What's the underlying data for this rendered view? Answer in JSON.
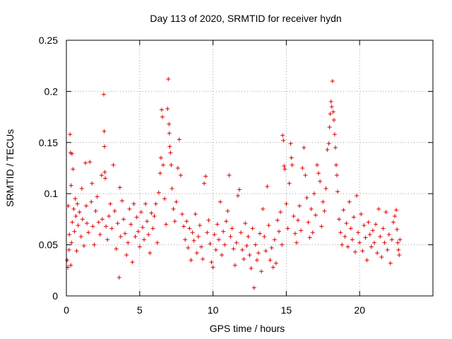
{
  "chart_data": {
    "type": "scatter",
    "title": "Day 113 of 2020, SRMTID for receiver hydn",
    "xlabel": "GPS time / hours",
    "ylabel": "SRMTID / TECUs",
    "xlim": [
      0,
      25
    ],
    "ylim": [
      0,
      0.25
    ],
    "xticks": [
      0,
      5,
      10,
      15,
      20
    ],
    "xtick_labels": [
      "0",
      "5",
      "10",
      "15",
      "20"
    ],
    "yticks": [
      0,
      0.05,
      0.1,
      0.15,
      0.2,
      0.25
    ],
    "ytick_labels": [
      "0",
      "0.05",
      "0.1",
      "0.15",
      "0.2",
      "0.25"
    ],
    "grid": true,
    "marker": "plus",
    "color": "#e00000",
    "series": [
      {
        "name": "SRMTID",
        "points": [
          [
            0.05,
            0.035
          ],
          [
            0.1,
            0.028
          ],
          [
            0.12,
            0.088
          ],
          [
            0.18,
            0.045
          ],
          [
            0.2,
            0.06
          ],
          [
            0.25,
            0.158
          ],
          [
            0.28,
            0.14
          ],
          [
            0.3,
            0.03
          ],
          [
            0.32,
            0.108
          ],
          [
            0.35,
            0.052
          ],
          [
            0.38,
            0.139
          ],
          [
            0.4,
            0.072
          ],
          [
            0.45,
            0.124
          ],
          [
            0.5,
            0.085
          ],
          [
            0.55,
            0.063
          ],
          [
            0.6,
            0.095
          ],
          [
            0.65,
            0.078
          ],
          [
            0.7,
            0.044
          ],
          [
            0.75,
            0.09
          ],
          [
            0.8,
            0.069
          ],
          [
            0.9,
            0.082
          ],
          [
            1.0,
            0.058
          ],
          [
            1.05,
            0.105
          ],
          [
            1.1,
            0.075
          ],
          [
            1.2,
            0.049
          ],
          [
            1.3,
            0.13
          ],
          [
            1.35,
            0.088
          ],
          [
            1.4,
            0.071
          ],
          [
            1.5,
            0.062
          ],
          [
            1.6,
            0.131
          ],
          [
            1.7,
            0.092
          ],
          [
            1.75,
            0.11
          ],
          [
            1.8,
            0.068
          ],
          [
            1.9,
            0.05
          ],
          [
            2.0,
            0.083
          ],
          [
            2.1,
            0.097
          ],
          [
            2.2,
            0.072
          ],
          [
            2.3,
            0.06
          ],
          [
            2.4,
            0.118
          ],
          [
            2.45,
            0.075
          ],
          [
            2.55,
            0.197
          ],
          [
            2.58,
            0.161
          ],
          [
            2.6,
            0.146
          ],
          [
            2.62,
            0.121
          ],
          [
            2.65,
            0.115
          ],
          [
            2.7,
            0.068
          ],
          [
            2.8,
            0.055
          ],
          [
            2.9,
            0.078
          ],
          [
            3.0,
            0.09
          ],
          [
            3.1,
            0.066
          ],
          [
            3.2,
            0.128
          ],
          [
            3.3,
            0.083
          ],
          [
            3.4,
            0.046
          ],
          [
            3.5,
            0.071
          ],
          [
            3.6,
            0.018
          ],
          [
            3.65,
            0.106
          ],
          [
            3.7,
            0.058
          ],
          [
            3.8,
            0.093
          ],
          [
            3.9,
            0.075
          ],
          [
            4.0,
            0.061
          ],
          [
            4.1,
            0.04
          ],
          [
            4.2,
            0.052
          ],
          [
            4.3,
            0.085
          ],
          [
            4.4,
            0.07
          ],
          [
            4.5,
            0.033
          ],
          [
            4.6,
            0.09
          ],
          [
            4.7,
            0.058
          ],
          [
            4.8,
            0.077
          ],
          [
            4.9,
            0.063
          ],
          [
            5.0,
            0.048
          ],
          [
            5.1,
            0.082
          ],
          [
            5.2,
            0.067
          ],
          [
            5.3,
            0.055
          ],
          [
            5.4,
            0.09
          ],
          [
            5.5,
            0.073
          ],
          [
            5.6,
            0.06
          ],
          [
            5.7,
            0.042
          ],
          [
            5.8,
            0.081
          ],
          [
            5.9,
            0.066
          ],
          [
            6.0,
            0.078
          ],
          [
            6.1,
            0.09
          ],
          [
            6.2,
            0.052
          ],
          [
            6.3,
            0.101
          ],
          [
            6.4,
            0.12
          ],
          [
            6.45,
            0.135
          ],
          [
            6.5,
            0.182
          ],
          [
            6.55,
            0.175
          ],
          [
            6.6,
            0.128
          ],
          [
            6.7,
            0.095
          ],
          [
            6.8,
            0.07
          ],
          [
            6.9,
            0.183
          ],
          [
            6.95,
            0.212
          ],
          [
            7.0,
            0.168
          ],
          [
            7.02,
            0.159
          ],
          [
            7.05,
            0.146
          ],
          [
            7.1,
            0.14
          ],
          [
            7.15,
            0.128
          ],
          [
            7.2,
            0.105
          ],
          [
            7.3,
            0.085
          ],
          [
            7.4,
            0.073
          ],
          [
            7.5,
            0.092
          ],
          [
            7.6,
            0.125
          ],
          [
            7.7,
            0.153
          ],
          [
            7.8,
            0.118
          ],
          [
            7.9,
            0.08
          ],
          [
            8.0,
            0.068
          ],
          [
            8.1,
            0.055
          ],
          [
            8.2,
            0.073
          ],
          [
            8.3,
            0.047
          ],
          [
            8.4,
            0.066
          ],
          [
            8.5,
            0.035
          ],
          [
            8.6,
            0.062
          ],
          [
            8.7,
            0.054
          ],
          [
            8.8,
            0.08
          ],
          [
            8.9,
            0.042
          ],
          [
            9.0,
            0.058
          ],
          [
            9.1,
            0.069
          ],
          [
            9.2,
            0.048
          ],
          [
            9.3,
            0.036
          ],
          [
            9.4,
            0.11
          ],
          [
            9.5,
            0.117
          ],
          [
            9.6,
            0.062
          ],
          [
            9.7,
            0.074
          ],
          [
            9.8,
            0.051
          ],
          [
            9.9,
            0.033
          ],
          [
            10.0,
            0.028
          ],
          [
            10.1,
            0.06
          ],
          [
            10.2,
            0.045
          ],
          [
            10.3,
            0.07
          ],
          [
            10.4,
            0.055
          ],
          [
            10.5,
            0.092
          ],
          [
            10.6,
            0.04
          ],
          [
            10.7,
            0.063
          ],
          [
            10.8,
            0.05
          ],
          [
            10.9,
            0.073
          ],
          [
            11.0,
            0.083
          ],
          [
            11.1,
            0.118
          ],
          [
            11.2,
            0.058
          ],
          [
            11.3,
            0.066
          ],
          [
            11.4,
            0.046
          ],
          [
            11.5,
            0.03
          ],
          [
            11.6,
            0.052
          ],
          [
            11.7,
            0.098
          ],
          [
            11.8,
            0.104
          ],
          [
            11.9,
            0.062
          ],
          [
            12.0,
            0.045
          ],
          [
            12.1,
            0.036
          ],
          [
            12.2,
            0.071
          ],
          [
            12.3,
            0.049
          ],
          [
            12.4,
            0.058
          ],
          [
            12.5,
            0.04
          ],
          [
            12.6,
            0.027
          ],
          [
            12.7,
            0.066
          ],
          [
            12.8,
            0.008
          ],
          [
            12.9,
            0.05
          ],
          [
            13.0,
            0.035
          ],
          [
            13.1,
            0.042
          ],
          [
            13.2,
            0.061
          ],
          [
            13.3,
            0.024
          ],
          [
            13.4,
            0.085
          ],
          [
            13.5,
            0.058
          ],
          [
            13.6,
            0.044
          ],
          [
            13.7,
            0.107
          ],
          [
            13.8,
            0.069
          ],
          [
            13.9,
            0.035
          ],
          [
            14.0,
            0.047
          ],
          [
            14.1,
            0.028
          ],
          [
            14.2,
            0.055
          ],
          [
            14.3,
            0.032
          ],
          [
            14.4,
            0.074
          ],
          [
            14.5,
            0.063
          ],
          [
            14.6,
            0.082
          ],
          [
            14.7,
            0.05
          ],
          [
            14.75,
            0.157
          ],
          [
            14.8,
            0.152
          ],
          [
            14.85,
            0.127
          ],
          [
            14.9,
            0.124
          ],
          [
            15.0,
            0.09
          ],
          [
            15.1,
            0.066
          ],
          [
            15.2,
            0.11
          ],
          [
            15.3,
            0.149
          ],
          [
            15.35,
            0.135
          ],
          [
            15.4,
            0.128
          ],
          [
            15.5,
            0.078
          ],
          [
            15.6,
            0.061
          ],
          [
            15.7,
            0.052
          ],
          [
            15.8,
            0.074
          ],
          [
            15.9,
            0.088
          ],
          [
            16.0,
            0.064
          ],
          [
            16.1,
            0.125
          ],
          [
            16.2,
            0.145
          ],
          [
            16.3,
            0.118
          ],
          [
            16.4,
            0.096
          ],
          [
            16.5,
            0.072
          ],
          [
            16.6,
            0.057
          ],
          [
            16.7,
            0.085
          ],
          [
            16.8,
            0.062
          ],
          [
            16.9,
            0.1
          ],
          [
            17.0,
            0.079
          ],
          [
            17.1,
            0.128
          ],
          [
            17.2,
            0.12
          ],
          [
            17.3,
            0.112
          ],
          [
            17.4,
            0.068
          ],
          [
            17.5,
            0.092
          ],
          [
            17.6,
            0.083
          ],
          [
            17.7,
            0.105
          ],
          [
            17.8,
            0.143
          ],
          [
            17.9,
            0.149
          ],
          [
            17.95,
            0.165
          ],
          [
            18.0,
            0.178
          ],
          [
            18.05,
            0.19
          ],
          [
            18.1,
            0.185
          ],
          [
            18.15,
            0.21
          ],
          [
            18.2,
            0.18
          ],
          [
            18.25,
            0.172
          ],
          [
            18.3,
            0.158
          ],
          [
            18.35,
            0.145
          ],
          [
            18.4,
            0.128
          ],
          [
            18.45,
            0.118
          ],
          [
            18.5,
            0.102
          ],
          [
            18.6,
            0.075
          ],
          [
            18.7,
            0.062
          ],
          [
            18.8,
            0.05
          ],
          [
            18.9,
            0.084
          ],
          [
            19.0,
            0.058
          ],
          [
            19.1,
            0.071
          ],
          [
            19.2,
            0.048
          ],
          [
            19.3,
            0.092
          ],
          [
            19.4,
            0.066
          ],
          [
            19.5,
            0.055
          ],
          [
            19.6,
            0.077
          ],
          [
            19.7,
            0.043
          ],
          [
            19.8,
            0.098
          ],
          [
            19.9,
            0.062
          ],
          [
            20.0,
            0.052
          ],
          [
            20.1,
            0.08
          ],
          [
            20.2,
            0.044
          ],
          [
            20.3,
            0.069
          ],
          [
            20.4,
            0.057
          ],
          [
            20.5,
            0.035
          ],
          [
            20.6,
            0.072
          ],
          [
            20.7,
            0.06
          ],
          [
            20.8,
            0.048
          ],
          [
            20.9,
            0.064
          ],
          [
            21.0,
            0.052
          ],
          [
            21.1,
            0.07
          ],
          [
            21.2,
            0.042
          ],
          [
            21.3,
            0.085
          ],
          [
            21.4,
            0.058
          ],
          [
            21.5,
            0.038
          ],
          [
            21.6,
            0.066
          ],
          [
            21.7,
            0.052
          ],
          [
            21.8,
            0.082
          ],
          [
            21.9,
            0.045
          ],
          [
            22.0,
            0.06
          ],
          [
            22.1,
            0.032
          ],
          [
            22.2,
            0.055
          ],
          [
            22.3,
            0.072
          ],
          [
            22.4,
            0.078
          ],
          [
            22.5,
            0.084
          ],
          [
            22.55,
            0.065
          ],
          [
            22.6,
            0.052
          ],
          [
            22.65,
            0.045
          ],
          [
            22.7,
            0.04
          ],
          [
            22.75,
            0.055
          ]
        ]
      }
    ]
  }
}
